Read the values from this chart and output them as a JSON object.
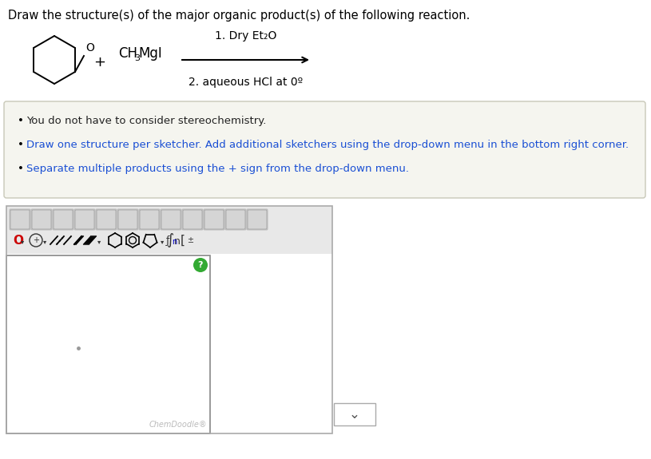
{
  "title": "Draw the structure(s) of the major organic product(s) of the following reaction.",
  "title_color": "#000000",
  "title_fontsize": 10.5,
  "bg_color": "#ffffff",
  "bullet_bg_color": "#f5f5ef",
  "bullet_border_color": "#ccccbb",
  "bullets": [
    "You do not have to consider stereochemistry.",
    "Draw one structure per sketcher. Add additional sketchers using the drop-down menu in the bottom right corner.",
    "Separate multiple products using the + sign from the drop-down menu."
  ],
  "bullet_color_black": "#222222",
  "bullet_color_blue": "#1a4fd4",
  "bullet_fontsize": 9.5,
  "chemdoodle_label": "ChemDoodle®",
  "condition1": "1. Dry Et₂O",
  "condition2": "2. aqueous HCl at 0º"
}
